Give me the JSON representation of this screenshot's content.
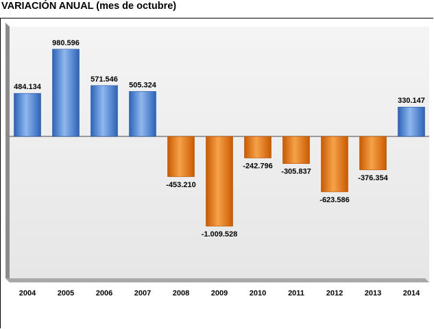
{
  "title": "VARIACIÓN ANUAL (mes de octubre)",
  "colors": {
    "positive_light": "#8fb8ee",
    "positive_dark": "#2c63b7",
    "negative_light": "#f6a24a",
    "negative_dark": "#c95a00",
    "plot_background": "#eeeeee",
    "wall": "#9a9a9a"
  },
  "chart_data": {
    "type": "bar",
    "title": "VARIACIÓN ANUAL (mes de octubre)",
    "xlabel": "",
    "ylabel": "",
    "ylim": [
      -1250000,
      1250000
    ],
    "grid": false,
    "categories": [
      "2004",
      "2005",
      "2006",
      "2007",
      "2008",
      "2009",
      "2010",
      "2011",
      "2012",
      "2013",
      "2014"
    ],
    "values": [
      484134,
      980596,
      571546,
      505324,
      -453210,
      -1009528,
      -242796,
      -305837,
      -623586,
      -376354,
      330147
    ],
    "data_labels": [
      "484.134",
      "980.596",
      "571.546",
      "505.324",
      "-453.210",
      "-1.009.528",
      "-242.796",
      "-305.837",
      "-623.586",
      "-376.354",
      "330.147"
    ]
  }
}
